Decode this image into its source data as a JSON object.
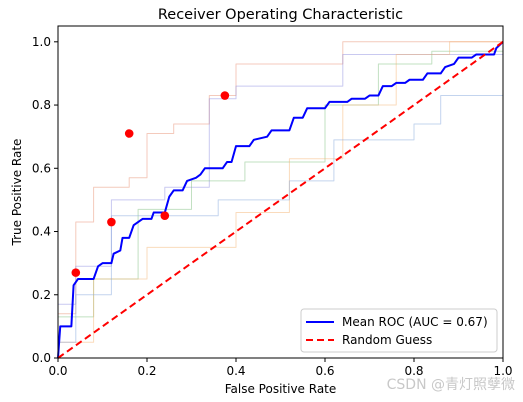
{
  "chart_data": {
    "type": "line",
    "title": "Receiver Operating Characteristic",
    "xlabel": "False Positive Rate",
    "ylabel": "True Positive Rate",
    "xlim": [
      0,
      1
    ],
    "ylim": [
      0,
      1.05
    ],
    "xticks": [
      "0.0",
      "0.2",
      "0.4",
      "0.6",
      "0.8",
      "1.0"
    ],
    "yticks": [
      "0.0",
      "0.2",
      "0.4",
      "0.6",
      "0.8",
      "1.0"
    ],
    "grid": false,
    "legend_position": "lower-right",
    "legend": [
      {
        "label": "Mean ROC (AUC = 0.67)",
        "color": "#0000ff",
        "style": "solid"
      },
      {
        "label": "Random Guess",
        "color": "#ff0000",
        "style": "dashed"
      }
    ],
    "series": [
      {
        "color": "#e9967a",
        "opacity": 0.5,
        "values": [
          [
            0,
            0
          ],
          [
            0,
            0.14
          ],
          [
            0.04,
            0.14
          ],
          [
            0.04,
            0.43
          ],
          [
            0.08,
            0.43
          ],
          [
            0.08,
            0.54
          ],
          [
            0.16,
            0.54
          ],
          [
            0.16,
            0.57
          ],
          [
            0.2,
            0.57
          ],
          [
            0.2,
            0.71
          ],
          [
            0.26,
            0.71
          ],
          [
            0.26,
            0.74
          ],
          [
            0.34,
            0.74
          ],
          [
            0.34,
            0.83
          ],
          [
            0.4,
            0.83
          ],
          [
            0.4,
            0.93
          ],
          [
            0.64,
            0.93
          ],
          [
            0.64,
            1.0
          ],
          [
            1.0,
            1.0
          ]
        ]
      },
      {
        "color": "#8888dd",
        "opacity": 0.45,
        "values": [
          [
            0,
            0
          ],
          [
            0,
            0.17
          ],
          [
            0.04,
            0.17
          ],
          [
            0.04,
            0.29
          ],
          [
            0.12,
            0.29
          ],
          [
            0.12,
            0.5
          ],
          [
            0.24,
            0.5
          ],
          [
            0.24,
            0.54
          ],
          [
            0.34,
            0.54
          ],
          [
            0.34,
            0.82
          ],
          [
            0.4,
            0.82
          ],
          [
            0.4,
            0.86
          ],
          [
            0.64,
            0.86
          ],
          [
            0.64,
            0.96
          ],
          [
            1.0,
            0.96
          ],
          [
            1.0,
            1.0
          ]
        ]
      },
      {
        "color": "#77bb77",
        "opacity": 0.45,
        "values": [
          [
            0,
            0
          ],
          [
            0,
            0.13
          ],
          [
            0.08,
            0.13
          ],
          [
            0.08,
            0.25
          ],
          [
            0.18,
            0.25
          ],
          [
            0.18,
            0.47
          ],
          [
            0.3,
            0.47
          ],
          [
            0.3,
            0.56
          ],
          [
            0.42,
            0.56
          ],
          [
            0.42,
            0.62
          ],
          [
            0.6,
            0.62
          ],
          [
            0.6,
            0.8
          ],
          [
            0.72,
            0.8
          ],
          [
            0.72,
            0.93
          ],
          [
            0.84,
            0.93
          ],
          [
            0.84,
            0.97
          ],
          [
            1.0,
            0.97
          ],
          [
            1.0,
            1.0
          ]
        ]
      },
      {
        "color": "#f4b06a",
        "opacity": 0.45,
        "values": [
          [
            0,
            0
          ],
          [
            0,
            0.05
          ],
          [
            0.08,
            0.05
          ],
          [
            0.08,
            0.25
          ],
          [
            0.2,
            0.25
          ],
          [
            0.2,
            0.35
          ],
          [
            0.4,
            0.35
          ],
          [
            0.4,
            0.46
          ],
          [
            0.52,
            0.46
          ],
          [
            0.52,
            0.63
          ],
          [
            0.64,
            0.63
          ],
          [
            0.64,
            0.8
          ],
          [
            0.76,
            0.8
          ],
          [
            0.76,
            0.96
          ],
          [
            0.88,
            0.96
          ],
          [
            0.88,
            1.0
          ],
          [
            1.0,
            1.0
          ]
        ]
      },
      {
        "color": "#88aadd",
        "opacity": 0.5,
        "values": [
          [
            0,
            0
          ],
          [
            0,
            0.05
          ],
          [
            0.04,
            0.05
          ],
          [
            0.04,
            0.2
          ],
          [
            0.12,
            0.2
          ],
          [
            0.12,
            0.45
          ],
          [
            0.36,
            0.45
          ],
          [
            0.36,
            0.5
          ],
          [
            0.52,
            0.5
          ],
          [
            0.52,
            0.56
          ],
          [
            0.62,
            0.56
          ],
          [
            0.62,
            0.69
          ],
          [
            0.8,
            0.69
          ],
          [
            0.8,
            0.74
          ],
          [
            0.86,
            0.74
          ],
          [
            0.86,
            0.83
          ],
          [
            1.0,
            0.83
          ]
        ]
      },
      {
        "name": "Mean ROC",
        "color": "#0000ff",
        "opacity": 1,
        "width": 2,
        "values": [
          [
            0,
            0
          ],
          [
            0.005,
            0.1
          ],
          [
            0.03,
            0.1
          ],
          [
            0.035,
            0.23
          ],
          [
            0.045,
            0.25
          ],
          [
            0.08,
            0.25
          ],
          [
            0.09,
            0.29
          ],
          [
            0.1,
            0.3
          ],
          [
            0.12,
            0.3
          ],
          [
            0.125,
            0.33
          ],
          [
            0.14,
            0.34
          ],
          [
            0.145,
            0.38
          ],
          [
            0.16,
            0.38
          ],
          [
            0.17,
            0.42
          ],
          [
            0.19,
            0.44
          ],
          [
            0.21,
            0.44
          ],
          [
            0.215,
            0.46
          ],
          [
            0.24,
            0.46
          ],
          [
            0.25,
            0.51
          ],
          [
            0.26,
            0.53
          ],
          [
            0.28,
            0.53
          ],
          [
            0.29,
            0.56
          ],
          [
            0.31,
            0.57
          ],
          [
            0.32,
            0.58
          ],
          [
            0.33,
            0.6
          ],
          [
            0.37,
            0.6
          ],
          [
            0.38,
            0.62
          ],
          [
            0.39,
            0.62
          ],
          [
            0.4,
            0.67
          ],
          [
            0.43,
            0.67
          ],
          [
            0.44,
            0.69
          ],
          [
            0.47,
            0.7
          ],
          [
            0.48,
            0.72
          ],
          [
            0.52,
            0.72
          ],
          [
            0.53,
            0.76
          ],
          [
            0.55,
            0.76
          ],
          [
            0.56,
            0.79
          ],
          [
            0.6,
            0.79
          ],
          [
            0.61,
            0.81
          ],
          [
            0.65,
            0.81
          ],
          [
            0.66,
            0.82
          ],
          [
            0.69,
            0.82
          ],
          [
            0.7,
            0.83
          ],
          [
            0.72,
            0.83
          ],
          [
            0.73,
            0.86
          ],
          [
            0.75,
            0.86
          ],
          [
            0.76,
            0.87
          ],
          [
            0.78,
            0.87
          ],
          [
            0.79,
            0.88
          ],
          [
            0.82,
            0.88
          ],
          [
            0.83,
            0.9
          ],
          [
            0.86,
            0.9
          ],
          [
            0.87,
            0.92
          ],
          [
            0.89,
            0.93
          ],
          [
            0.9,
            0.95
          ],
          [
            0.93,
            0.95
          ],
          [
            0.94,
            0.96
          ],
          [
            0.98,
            0.96
          ],
          [
            0.985,
            0.98
          ],
          [
            1.0,
            1.0
          ]
        ]
      }
    ],
    "random_guess": [
      [
        0,
        0
      ],
      [
        1,
        1
      ]
    ],
    "highlight_points": [
      [
        0.04,
        0.27
      ],
      [
        0.12,
        0.43
      ],
      [
        0.16,
        0.71
      ],
      [
        0.24,
        0.45
      ],
      [
        0.375,
        0.83
      ]
    ]
  },
  "watermark": "CSDN @青灯照孽微"
}
